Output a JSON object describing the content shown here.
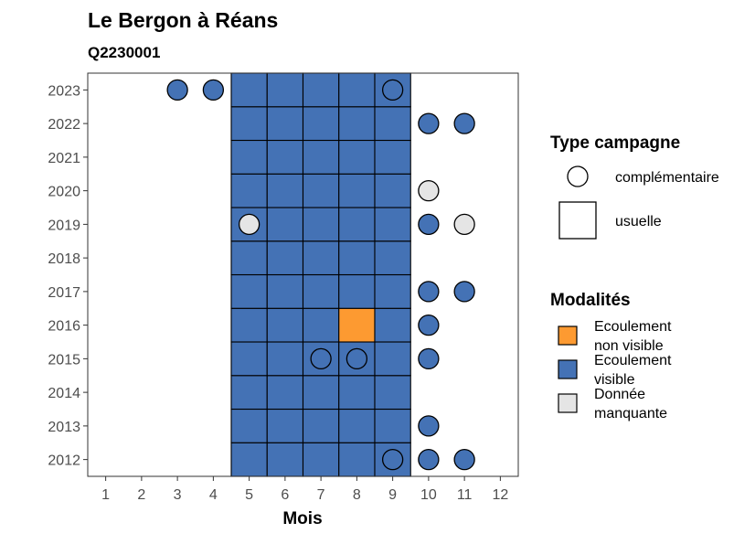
{
  "header": {
    "title": "Le Bergon à Réans",
    "subtitle": "Q2230001"
  },
  "colors": {
    "ecoulement_non_visible": "#FD9A31",
    "ecoulement_visible": "#4472B5",
    "donnee_manquante": "#E5E5E5",
    "complementaire": "#FFFFFF"
  },
  "legend_type": {
    "title": "Type campagne",
    "items": [
      {
        "shape": "circle",
        "label": "complémentaire"
      },
      {
        "shape": "square",
        "label": "usuelle"
      }
    ]
  },
  "legend_modalites": {
    "title": "Modalités",
    "items": [
      {
        "key": "non_visible",
        "color": "#FD9A31",
        "line1": "Ecoulement",
        "line2": "non visible"
      },
      {
        "key": "visible",
        "color": "#4472B5",
        "line1": "Ecoulement",
        "line2": "visible"
      },
      {
        "key": "manquante",
        "color": "#E5E5E5",
        "line1": "Donnée",
        "line2": "manquante"
      }
    ]
  },
  "chart_data": {
    "type": "heatmap",
    "xlabel": "Mois",
    "ylabel": "",
    "x_ticks": [
      1,
      2,
      3,
      4,
      5,
      6,
      7,
      8,
      9,
      10,
      11,
      12
    ],
    "y_ticks": [
      2012,
      2013,
      2014,
      2015,
      2016,
      2017,
      2018,
      2019,
      2020,
      2021,
      2022,
      2023
    ],
    "xlim": [
      0.5,
      12.5
    ],
    "ylim": [
      2011.5,
      2023.5
    ],
    "usuelle_months": [
      5,
      6,
      7,
      8,
      9
    ],
    "usuelle_default": "visible",
    "usuelle_exceptions": [
      {
        "year": 2016,
        "month": 8,
        "modalite": "non_visible"
      }
    ],
    "complementaire": [
      {
        "year": 2023,
        "month": 3,
        "modalite": "visible"
      },
      {
        "year": 2023,
        "month": 4,
        "modalite": "visible"
      },
      {
        "year": 2023,
        "month": 9,
        "modalite": "visible"
      },
      {
        "year": 2022,
        "month": 10,
        "modalite": "visible"
      },
      {
        "year": 2022,
        "month": 11,
        "modalite": "visible"
      },
      {
        "year": 2020,
        "month": 10,
        "modalite": "manquante"
      },
      {
        "year": 2019,
        "month": 5,
        "modalite": "manquante"
      },
      {
        "year": 2019,
        "month": 10,
        "modalite": "visible"
      },
      {
        "year": 2019,
        "month": 11,
        "modalite": "manquante"
      },
      {
        "year": 2017,
        "month": 10,
        "modalite": "visible"
      },
      {
        "year": 2017,
        "month": 11,
        "modalite": "visible"
      },
      {
        "year": 2016,
        "month": 10,
        "modalite": "visible"
      },
      {
        "year": 2015,
        "month": 7,
        "modalite": "visible"
      },
      {
        "year": 2015,
        "month": 8,
        "modalite": "visible"
      },
      {
        "year": 2015,
        "month": 10,
        "modalite": "visible"
      },
      {
        "year": 2013,
        "month": 10,
        "modalite": "visible"
      },
      {
        "year": 2012,
        "month": 9,
        "modalite": "visible"
      },
      {
        "year": 2012,
        "month": 10,
        "modalite": "visible"
      },
      {
        "year": 2012,
        "month": 11,
        "modalite": "visible"
      }
    ]
  }
}
